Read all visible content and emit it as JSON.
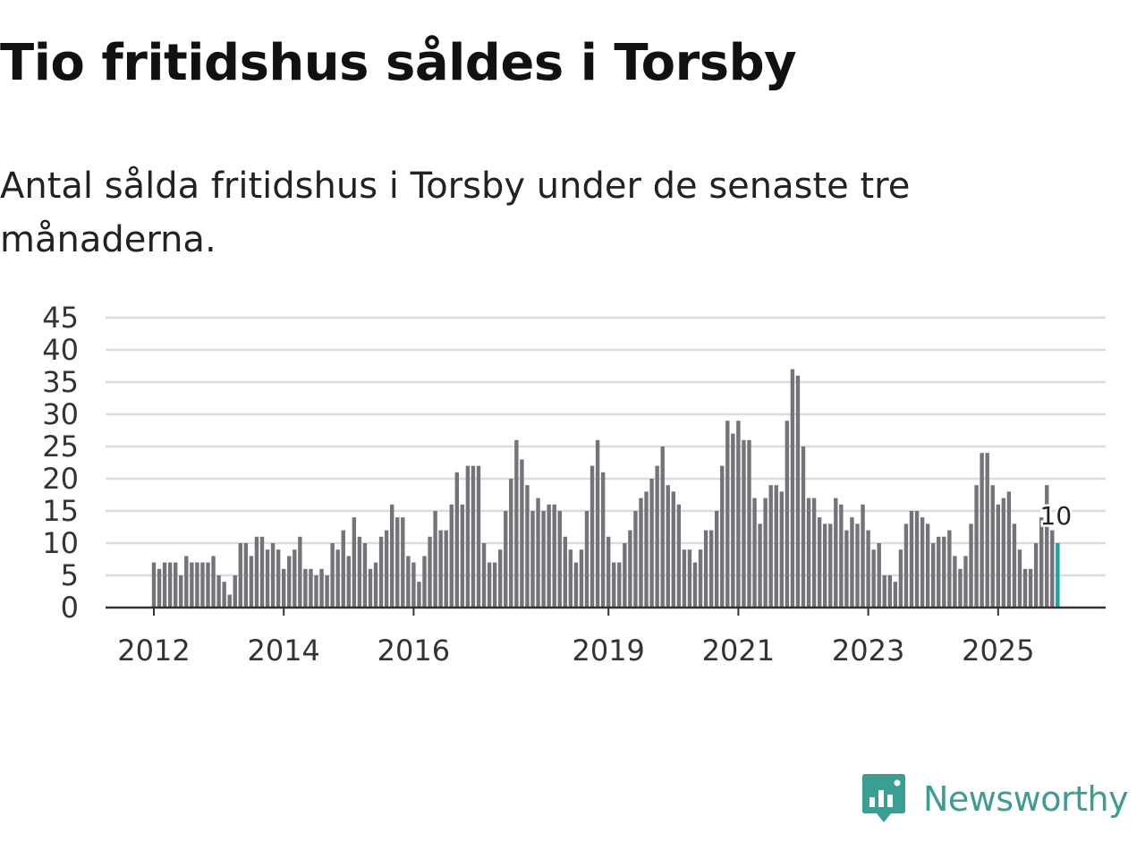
{
  "header": {
    "title": "Tio fritidshus såldes i Torsby",
    "subtitle": "Antal sålda fritidshus i Torsby under de senaste tre månaderna."
  },
  "brand": {
    "name": "Newsworthy",
    "color": "#3a9e92"
  },
  "colors": {
    "bar": "#74737a",
    "highlight": "#1fa399",
    "grid": "#dcdcdc",
    "axis": "#333333"
  },
  "chart_data": {
    "type": "bar",
    "title": "Tio fritidshus såldes i Torsby",
    "xlabel": "",
    "ylabel": "",
    "ylim": [
      0,
      45
    ],
    "yticks": [
      "0",
      "5",
      "10",
      "15",
      "20",
      "25",
      "30",
      "35",
      "40",
      "45"
    ],
    "xticks": [
      {
        "label": "2012",
        "index": 0
      },
      {
        "label": "2014",
        "index": 24
      },
      {
        "label": "2016",
        "index": 48
      },
      {
        "label": "2019",
        "index": 84
      },
      {
        "label": "2021",
        "index": 108
      },
      {
        "label": "2023",
        "index": 132
      },
      {
        "label": "2025",
        "index": 156
      }
    ],
    "start": "2012-01",
    "frequency": "monthly",
    "values": [
      7,
      6,
      7,
      7,
      7,
      5,
      8,
      7,
      7,
      7,
      7,
      8,
      5,
      4,
      2,
      5,
      10,
      10,
      8,
      11,
      11,
      9,
      10,
      9,
      6,
      8,
      9,
      11,
      6,
      6,
      5,
      6,
      5,
      10,
      9,
      12,
      8,
      14,
      11,
      10,
      6,
      7,
      11,
      12,
      16,
      14,
      14,
      8,
      7,
      4,
      8,
      11,
      15,
      12,
      12,
      16,
      21,
      16,
      22,
      22,
      22,
      10,
      7,
      7,
      9,
      15,
      20,
      26,
      23,
      19,
      15,
      17,
      15,
      16,
      16,
      15,
      11,
      9,
      7,
      9,
      15,
      22,
      26,
      21,
      11,
      7,
      7,
      10,
      12,
      15,
      17,
      18,
      20,
      22,
      25,
      19,
      18,
      16,
      9,
      9,
      7,
      9,
      12,
      12,
      15,
      22,
      29,
      27,
      29,
      26,
      26,
      17,
      13,
      17,
      19,
      19,
      18,
      29,
      37,
      36,
      25,
      17,
      17,
      14,
      13,
      13,
      17,
      16,
      12,
      14,
      13,
      16,
      12,
      9,
      10,
      5,
      5,
      4,
      9,
      13,
      15,
      15,
      14,
      13,
      10,
      11,
      11,
      12,
      8,
      6,
      8,
      13,
      19,
      24,
      24,
      19,
      16,
      17,
      18,
      13,
      9,
      6,
      6,
      10,
      14,
      19,
      12,
      10
    ],
    "highlight_index": 167,
    "highlight_label": "10"
  }
}
